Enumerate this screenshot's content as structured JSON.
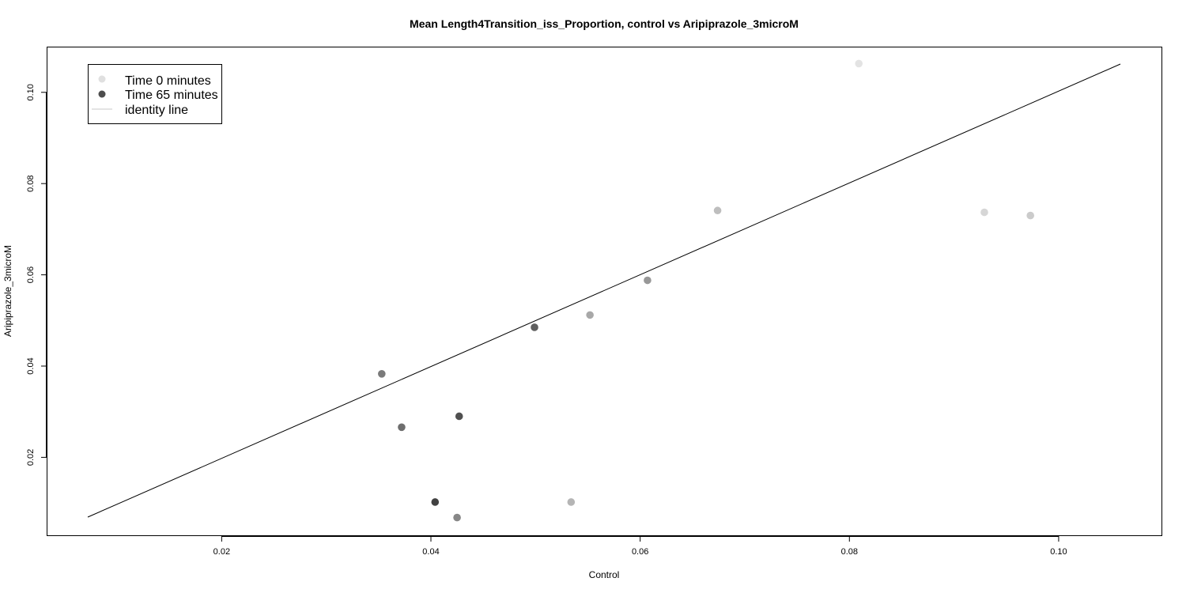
{
  "chart_data": {
    "type": "scatter",
    "title": "Mean Length4Transition_iss_Proportion, control vs Aripiprazole_3microM",
    "xlabel": "Control",
    "ylabel": "Aripiprazole_3microM",
    "xlim": [
      0.0072,
      0.1059
    ],
    "ylim": [
      0.0069,
      0.1062
    ],
    "xticks": [
      "0.02",
      "0.04",
      "0.06",
      "0.08",
      "0.10"
    ],
    "yticks": [
      "0.02",
      "0.04",
      "0.06",
      "0.08",
      "0.10"
    ],
    "grid": false,
    "legend_position": "top-left",
    "legend": [
      {
        "label": "Time 0 minutes",
        "color": "#e0e0e0",
        "kind": "point"
      },
      {
        "label": "Time 65 minutes",
        "color": "#4d4d4d",
        "kind": "point"
      },
      {
        "label": "identity line",
        "color": "#c8c8c8",
        "kind": "line"
      }
    ],
    "identity_line": {
      "from": [
        0.0072,
        0.0069
      ],
      "to": [
        0.1059,
        0.1062
      ],
      "color": "#000000"
    },
    "points": [
      {
        "x": 0.0809,
        "y": 0.1063,
        "color": "#e3e3e3"
      },
      {
        "x": 0.0929,
        "y": 0.0737,
        "color": "#d6d6d6"
      },
      {
        "x": 0.0973,
        "y": 0.073,
        "color": "#cbcbcb"
      },
      {
        "x": 0.0674,
        "y": 0.0741,
        "color": "#bebebe"
      },
      {
        "x": 0.0534,
        "y": 0.0102,
        "color": "#b5b5b5"
      },
      {
        "x": 0.0552,
        "y": 0.0512,
        "color": "#a8a8a8"
      },
      {
        "x": 0.0607,
        "y": 0.0588,
        "color": "#989898"
      },
      {
        "x": 0.0425,
        "y": 0.0068,
        "color": "#878787"
      },
      {
        "x": 0.0353,
        "y": 0.0383,
        "color": "#7a7a7a"
      },
      {
        "x": 0.0372,
        "y": 0.0266,
        "color": "#6e6e6e"
      },
      {
        "x": 0.0499,
        "y": 0.0485,
        "color": "#5f5f5f"
      },
      {
        "x": 0.0427,
        "y": 0.029,
        "color": "#505050"
      },
      {
        "x": 0.0404,
        "y": 0.0102,
        "color": "#414141"
      }
    ]
  }
}
